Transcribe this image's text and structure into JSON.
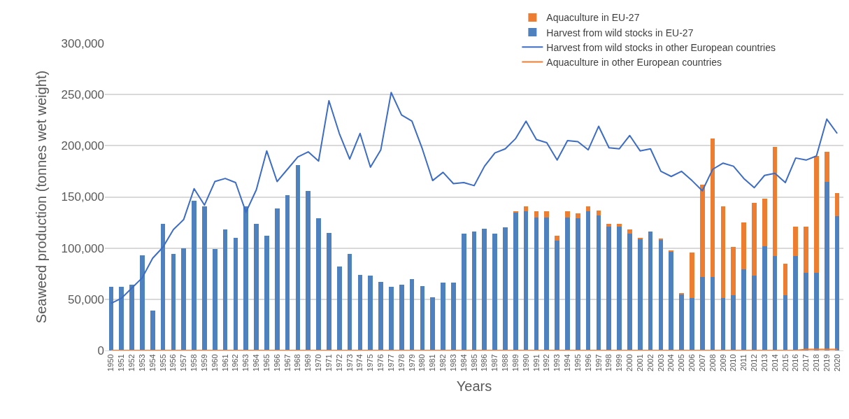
{
  "chart_data": {
    "type": "bar",
    "stacked": true,
    "xlabel": "Years",
    "ylabel": "Seaweed production (tonnes wet weight)",
    "categories": [
      "1950",
      "1951",
      "1952",
      "1953",
      "1954",
      "1955",
      "1956",
      "1957",
      "1958",
      "1959",
      "1960",
      "1961",
      "1962",
      "1963",
      "1964",
      "1965",
      "1966",
      "1967",
      "1968",
      "1969",
      "1970",
      "1971",
      "1972",
      "1973",
      "1974",
      "1975",
      "1976",
      "1977",
      "1978",
      "1979",
      "1980",
      "1981",
      "1982",
      "1983",
      "1984",
      "1985",
      "1986",
      "1987",
      "1988",
      "1989",
      "1990",
      "1991",
      "1992",
      "1993",
      "1994",
      "1995",
      "1996",
      "1997",
      "1998",
      "1999",
      "2000",
      "2001",
      "2002",
      "2003",
      "2004",
      "2005",
      "2006",
      "2007",
      "2008",
      "2009",
      "2010",
      "2011",
      "2012",
      "2013",
      "2014",
      "2015",
      "2016",
      "2017",
      "2018",
      "2019",
      "2020"
    ],
    "series": [
      {
        "name": "Harvest from wild stocks in EU-27",
        "color": "#4e81bd",
        "values": [
          62000,
          62000,
          64000,
          93000,
          39000,
          124000,
          94000,
          100000,
          146000,
          141000,
          99000,
          118000,
          110000,
          141000,
          124000,
          112000,
          139000,
          152000,
          181000,
          156000,
          129000,
          115000,
          82000,
          94000,
          74000,
          73000,
          67000,
          62000,
          64000,
          70000,
          63000,
          52000,
          66000,
          66000,
          114000,
          116000,
          119000,
          114000,
          120000,
          135000,
          136000,
          130000,
          130000,
          107000,
          130000,
          129000,
          136000,
          132000,
          121000,
          121000,
          114000,
          109000,
          116000,
          108000,
          97000,
          55000,
          51000,
          72000,
          72000,
          51000,
          54000,
          79000,
          73000,
          102000,
          92000,
          54000,
          92000,
          76000,
          76000,
          165000,
          131000
        ]
      },
      {
        "name": "Aquaculture in EU-27",
        "color": "#ed7d31",
        "values": [
          0,
          0,
          0,
          0,
          0,
          0,
          0,
          0,
          0,
          0,
          0,
          0,
          0,
          0,
          0,
          0,
          0,
          0,
          0,
          0,
          0,
          0,
          0,
          0,
          0,
          0,
          0,
          0,
          0,
          0,
          0,
          0,
          0,
          0,
          0,
          0,
          0,
          0,
          0,
          1000,
          5000,
          6000,
          6000,
          5000,
          6000,
          5000,
          5000,
          5000,
          3000,
          3000,
          4000,
          1000,
          0,
          1000,
          1000,
          1000,
          45000,
          90000,
          135000,
          90000,
          47000,
          46000,
          71000,
          46000,
          107000,
          31000,
          29000,
          45000,
          114000,
          29000,
          23000
        ]
      },
      {
        "name": "Harvest from wild stocks in other European countries",
        "type": "line",
        "color": "#3d6cc4",
        "values": [
          46000,
          51000,
          61000,
          71000,
          90000,
          101000,
          118000,
          128000,
          158000,
          142000,
          165000,
          168000,
          164000,
          135000,
          157000,
          195000,
          165000,
          177000,
          189000,
          194000,
          185000,
          244000,
          212000,
          187000,
          212000,
          179000,
          196000,
          252000,
          230000,
          224000,
          197000,
          166000,
          174000,
          163000,
          164000,
          161000,
          180000,
          193000,
          197000,
          207000,
          224000,
          206000,
          203000,
          186000,
          205000,
          204000,
          196000,
          219000,
          198000,
          197000,
          210000,
          195000,
          197000,
          175000,
          170000,
          175000,
          166000,
          156000,
          177000,
          183000,
          180000,
          168000,
          159000,
          171000,
          173000,
          164000,
          188000,
          186000,
          190000,
          226000,
          212000
        ]
      },
      {
        "name": "Aquaculture in other European countries",
        "type": "line",
        "color": "#ed7d31",
        "values": [
          0,
          0,
          0,
          0,
          0,
          0,
          0,
          0,
          0,
          0,
          0,
          0,
          0,
          0,
          0,
          0,
          0,
          0,
          0,
          0,
          0,
          0,
          0,
          0,
          0,
          0,
          0,
          0,
          0,
          0,
          0,
          0,
          0,
          0,
          0,
          0,
          0,
          0,
          0,
          0,
          0,
          0,
          0,
          0,
          0,
          0,
          0,
          0,
          0,
          0,
          0,
          0,
          0,
          0,
          0,
          0,
          0,
          0,
          0,
          0,
          0,
          0,
          0,
          0,
          0,
          0,
          0,
          1000,
          1000,
          1000,
          1000
        ]
      }
    ],
    "ylim": [
      0,
      300000
    ],
    "yticks": [
      {
        "value": 0,
        "label": "0"
      },
      {
        "value": 50000,
        "label": "50,000"
      },
      {
        "value": 100000,
        "label": "100,000"
      },
      {
        "value": 150000,
        "label": "150,000"
      },
      {
        "value": 200000,
        "label": "200,000"
      },
      {
        "value": 250000,
        "label": "250,000"
      },
      {
        "value": 300000,
        "label": "300,000"
      }
    ],
    "grid": "y",
    "legend": "top right"
  }
}
